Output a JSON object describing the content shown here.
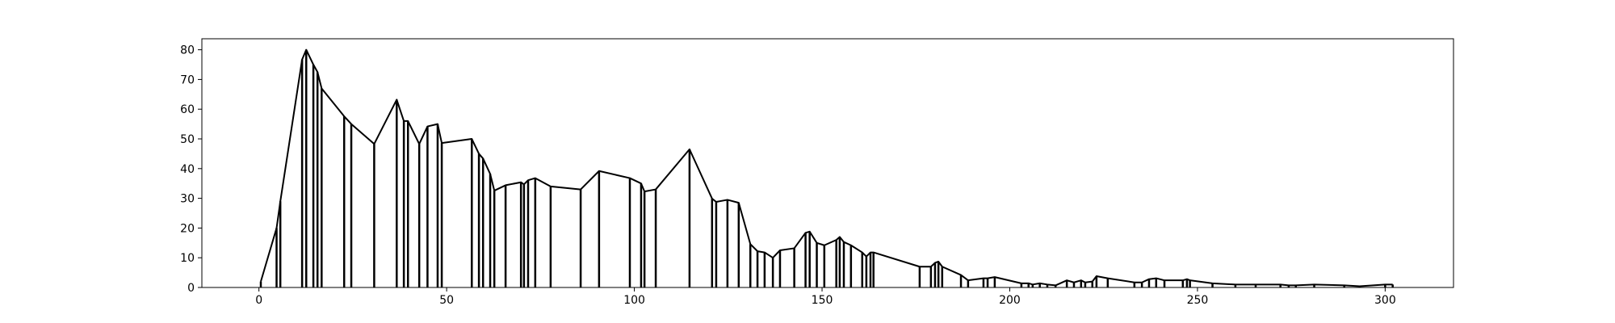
{
  "chart_data": {
    "type": "stem",
    "color": "#000000",
    "x": [
      0.5,
      4.7,
      5.7,
      11.5,
      12.6,
      14.5,
      15.6,
      16.7,
      22.7,
      24.6,
      30.7,
      36.7,
      38.6,
      39.7,
      42.7,
      44.9,
      47.6,
      48.7,
      56.7,
      58.6,
      59.7,
      61.6,
      62.7,
      65.7,
      69.8,
      70.6,
      71.7,
      73.6,
      77.7,
      85.7,
      90.6,
      98.8,
      101.8,
      102.7,
      105.7,
      114.7,
      120.7,
      121.8,
      124.8,
      127.8,
      130.9,
      132.8,
      134.7,
      136.9,
      138.8,
      142.6,
      145.6,
      146.7,
      148.6,
      150.6,
      153.8,
      154.7,
      155.8,
      157.7,
      160.7,
      161.8,
      162.9,
      163.7,
      176,
      179,
      180.1,
      181,
      182,
      187,
      188.9,
      193,
      194.1,
      196,
      203.1,
      205,
      206.1,
      208,
      210,
      212.2,
      215.2,
      217.1,
      219,
      220.1,
      222,
      223.1,
      226.1,
      233.2,
      235.2,
      237.1,
      239,
      241.2,
      246.1,
      247.2,
      248,
      254,
      260.1,
      265.5,
      272.1,
      274.3,
      276.2,
      281.1,
      289.1,
      293.2,
      300,
      302
    ],
    "values": [
      2,
      20,
      29,
      76.7,
      80,
      75,
      72.5,
      67,
      57.6,
      55,
      48.3,
      63.2,
      56,
      56,
      48.3,
      54.2,
      55,
      48.6,
      50,
      45,
      43.4,
      38.2,
      32.6,
      34.4,
      35.4,
      34.7,
      36.1,
      36.8,
      34,
      33,
      39.2,
      36.8,
      35,
      32.3,
      33,
      46.5,
      29.9,
      28.8,
      29.5,
      28.5,
      14.6,
      12.2,
      11.8,
      10,
      12.5,
      13.2,
      18.4,
      18.8,
      15,
      14.2,
      16,
      17,
      15.3,
      14.2,
      11.8,
      10.4,
      11.8,
      11.8,
      7,
      7,
      8.3,
      8.7,
      7,
      4.2,
      2.4,
      3.1,
      3.1,
      3.5,
      1.4,
      1.4,
      1,
      1.4,
      1,
      0.7,
      2.4,
      1.7,
      2.4,
      1.7,
      2,
      3.8,
      3.1,
      1.7,
      1.7,
      2.8,
      3.1,
      2.4,
      2.4,
      2.8,
      2.4,
      1.4,
      1,
      1,
      1,
      0.7,
      0.7,
      1,
      0.7,
      0.4,
      1,
      1
    ],
    "xlim": [
      -15.2,
      318.2
    ],
    "ylim": [
      0,
      83.7
    ],
    "xticks": [
      0,
      50,
      100,
      150,
      200,
      250,
      300
    ],
    "yticks": [
      0,
      10,
      20,
      30,
      40,
      50,
      60,
      70,
      80
    ]
  }
}
